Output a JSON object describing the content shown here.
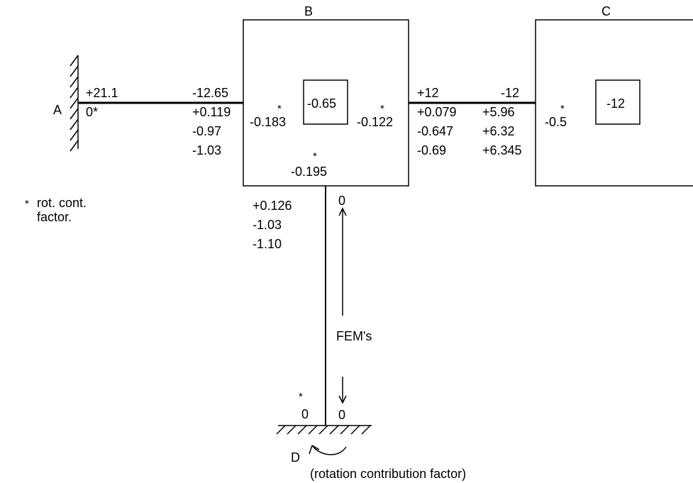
{
  "joints": {
    "a": "A",
    "b": "B",
    "c": "C",
    "d": "D"
  },
  "star": "*",
  "member_ab": {
    "a_end": [
      "+21.1",
      "0*"
    ],
    "b_end": [
      "-12.65",
      "+0.119",
      "-0.97",
      "-1.03"
    ]
  },
  "joint_b": {
    "box_value": "-0.65",
    "factor_left": "-0.183",
    "factor_right": "-0.122",
    "factor_bottom": "-0.195"
  },
  "member_bc": {
    "b_end": [
      "+12",
      "+0.079",
      "-0.647",
      "-0.69"
    ],
    "c_end": [
      "-12",
      "+5.96",
      "+6.32",
      "+6.345"
    ]
  },
  "joint_c": {
    "box_value": "-12",
    "factor": "-0.5"
  },
  "member_bd": {
    "b_end": [
      "+0.126",
      "-1.03",
      "-1.10"
    ],
    "fem_top": "0",
    "fem_bottom": "0",
    "fem_label": "FEM's",
    "d_factor": "0"
  },
  "legend": {
    "symbol": "*",
    "line1": "rot. cont.",
    "line2": "factor."
  },
  "caption": "(rotation contribution factor)"
}
